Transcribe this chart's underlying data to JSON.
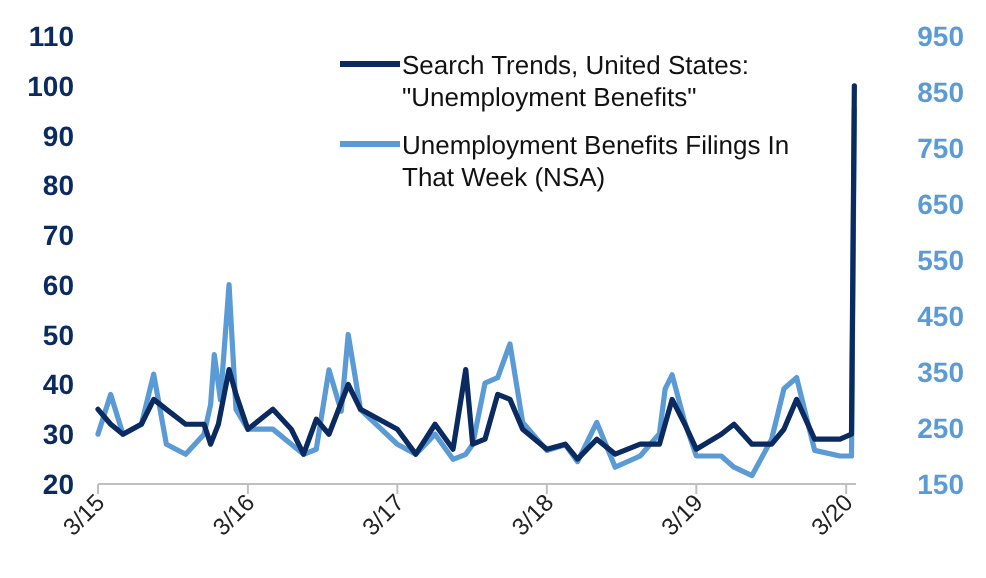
{
  "chart_data": {
    "type": "line",
    "legend": "top right",
    "grid": false,
    "xlim": [
      "2015-03-01",
      "2020-03-25"
    ],
    "xticks": [
      {
        "value": "2015-03-01",
        "label": "3/15"
      },
      {
        "value": "2016-03-01",
        "label": "3/16"
      },
      {
        "value": "2017-03-01",
        "label": "3/17"
      },
      {
        "value": "2018-03-01",
        "label": "3/18"
      },
      {
        "value": "2019-03-01",
        "label": "3/19"
      },
      {
        "value": "2020-03-01",
        "label": "3/20"
      }
    ],
    "ylim": [
      20,
      110
    ],
    "yticks": [
      20,
      30,
      40,
      50,
      60,
      70,
      80,
      90,
      100,
      110
    ],
    "y2lim": [
      150,
      950
    ],
    "y2ticks": [
      150,
      250,
      350,
      450,
      550,
      650,
      750,
      850,
      950
    ],
    "series": [
      {
        "name": "Search Trends, United States: \"Unemployment Benefits\"",
        "color": "#0b2a60",
        "x": [
          "2015-03-01",
          "2015-04-01",
          "2015-05-01",
          "2015-06-15",
          "2015-07-15",
          "2015-08-15",
          "2015-10-01",
          "2015-11-15",
          "2015-12-01",
          "2015-12-20",
          "2016-01-15",
          "2016-02-01",
          "2016-03-01",
          "2016-05-01",
          "2016-06-15",
          "2016-07-15",
          "2016-08-15",
          "2016-09-15",
          "2016-11-01",
          "2016-12-01",
          "2017-03-01",
          "2017-04-15",
          "2017-06-01",
          "2017-07-15",
          "2017-08-15",
          "2017-09-01",
          "2017-10-01",
          "2017-11-01",
          "2017-12-01",
          "2018-01-01",
          "2018-03-01",
          "2018-04-15",
          "2018-05-15",
          "2018-07-01",
          "2018-08-15",
          "2018-10-15",
          "2018-12-01",
          "2019-01-01",
          "2019-02-01",
          "2019-03-01",
          "2019-05-01",
          "2019-06-01",
          "2019-07-15",
          "2019-09-01",
          "2019-10-01",
          "2019-11-01",
          "2019-12-15",
          "2020-02-15",
          "2020-03-14",
          "2020-03-21"
        ],
        "values": [
          35,
          32,
          30,
          32,
          37,
          35,
          32,
          32,
          28,
          32,
          43,
          38,
          31,
          35,
          31,
          26,
          33,
          30,
          40,
          35,
          31,
          26,
          32,
          27,
          43,
          28,
          29,
          38,
          37,
          31,
          27,
          28,
          25,
          29,
          26,
          28,
          28,
          37,
          32,
          27,
          30,
          32,
          28,
          28,
          31,
          37,
          29,
          29,
          30,
          100
        ]
      },
      {
        "name": "Unemployment Benefits Filings In That Week (NSA)",
        "color": "#5b9bd5",
        "axis": "y2",
        "x": [
          "2015-03-01",
          "2015-04-01",
          "2015-05-01",
          "2015-06-15",
          "2015-07-15",
          "2015-08-15",
          "2015-10-01",
          "2015-11-15",
          "2015-12-01",
          "2015-12-10",
          "2015-12-25",
          "2016-01-15",
          "2016-02-01",
          "2016-03-01",
          "2016-05-01",
          "2016-06-15",
          "2016-07-15",
          "2016-08-15",
          "2016-09-15",
          "2016-10-15",
          "2016-11-01",
          "2016-12-01",
          "2017-03-01",
          "2017-04-15",
          "2017-06-01",
          "2017-07-15",
          "2017-08-15",
          "2017-09-01",
          "2017-10-01",
          "2017-11-01",
          "2017-12-01",
          "2018-01-01",
          "2018-03-01",
          "2018-04-15",
          "2018-05-15",
          "2018-07-01",
          "2018-08-15",
          "2018-10-15",
          "2018-12-01",
          "2018-12-15",
          "2019-01-01",
          "2019-02-01",
          "2019-03-01",
          "2019-05-01",
          "2019-06-01",
          "2019-07-15",
          "2019-09-01",
          "2019-10-01",
          "2019-11-01",
          "2019-12-15",
          "2020-02-15",
          "2020-03-14",
          "2020-03-21"
        ],
        "values": [
          239,
          310,
          239,
          257,
          346,
          221,
          203,
          239,
          292,
          381,
          300,
          506,
          283,
          248,
          248,
          221,
          203,
          212,
          354,
          280,
          417,
          283,
          221,
          203,
          239,
          194,
          203,
          221,
          330,
          340,
          400,
          260,
          210,
          220,
          190,
          260,
          180,
          200,
          240,
          320,
          345,
          260,
          200,
          200,
          180,
          165,
          230,
          320,
          340,
          210,
          200,
          200,
          820
        ]
      }
    ]
  }
}
